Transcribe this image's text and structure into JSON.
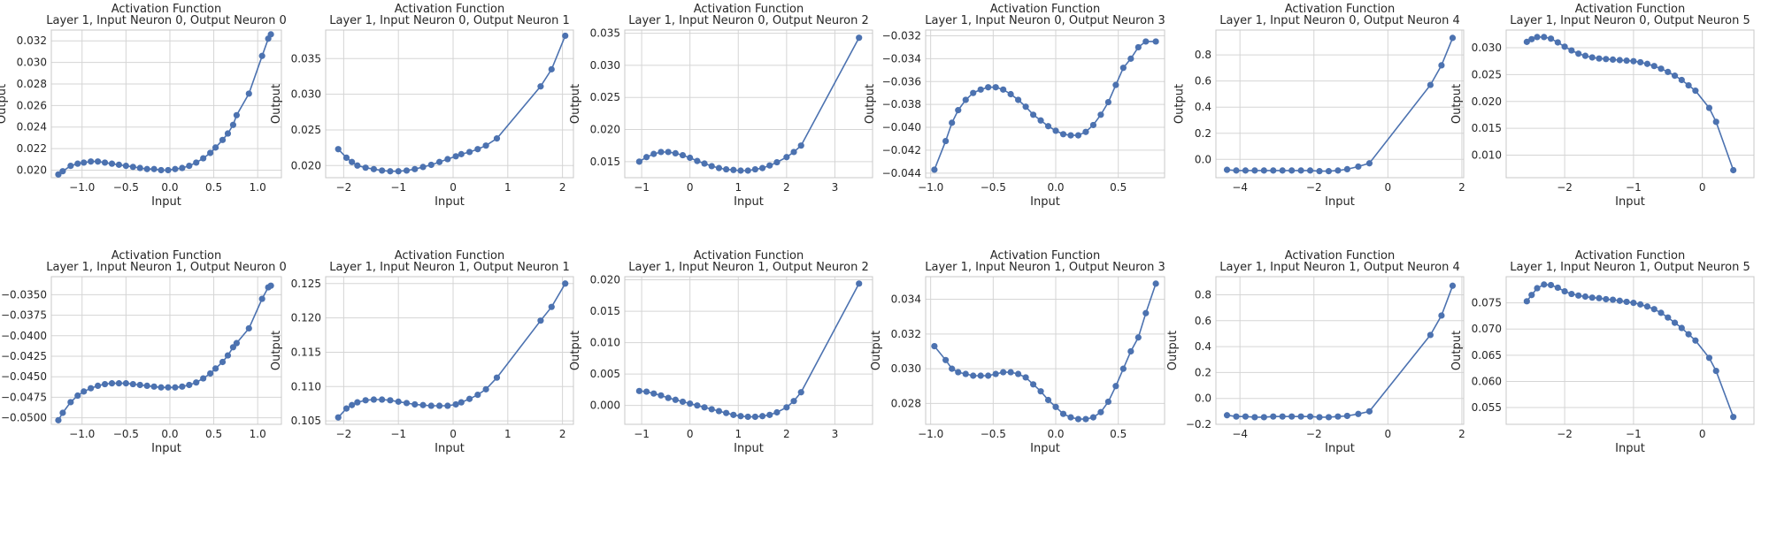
{
  "figure": {
    "rows": 2,
    "cols": 6,
    "style": {
      "line_color": "#4c72b0",
      "marker_color": "#4c72b0",
      "grid_color": "#d5d5d5",
      "background": "#ffffff"
    }
  },
  "chart_data": [
    {
      "type": "line",
      "title": "Activation Function\nLayer 1, Input Neuron 0, Output Neuron 0",
      "xlabel": "Input",
      "ylabel": "Output",
      "grid": true,
      "xlim": [
        -1.35,
        1.27
      ],
      "ylim": [
        0.0193,
        0.033
      ],
      "xticks": [
        -1.0,
        -0.5,
        0.0,
        0.5,
        1.0
      ],
      "xtick_labels": [
        "−1.0",
        "−0.5",
        "0.0",
        "0.5",
        "1.0"
      ],
      "yticks": [
        0.02,
        0.022,
        0.024,
        0.026,
        0.028,
        0.03,
        0.032
      ],
      "ytick_labels": [
        "0.020",
        "0.022",
        "0.024",
        "0.026",
        "0.028",
        "0.030",
        "0.032"
      ],
      "x": [
        -1.27,
        -1.22,
        -1.13,
        -1.05,
        -0.98,
        -0.9,
        -0.82,
        -0.74,
        -0.66,
        -0.58,
        -0.5,
        -0.42,
        -0.34,
        -0.26,
        -0.18,
        -0.1,
        -0.02,
        0.06,
        0.14,
        0.22,
        0.3,
        0.38,
        0.46,
        0.52,
        0.6,
        0.66,
        0.72,
        0.76,
        0.9,
        1.05,
        1.12,
        1.15
      ],
      "y": [
        0.0196,
        0.0199,
        0.0204,
        0.0206,
        0.0207,
        0.0208,
        0.0208,
        0.0207,
        0.0206,
        0.0205,
        0.0204,
        0.0203,
        0.0202,
        0.0201,
        0.0201,
        0.02,
        0.02,
        0.0201,
        0.0202,
        0.0204,
        0.0207,
        0.0211,
        0.0216,
        0.0221,
        0.0228,
        0.0234,
        0.0242,
        0.0251,
        0.0271,
        0.0306,
        0.0322,
        0.0326
      ]
    },
    {
      "type": "line",
      "title": "Activation Function\nLayer 1, Input Neuron 0, Output Neuron 1",
      "xlabel": "Input",
      "ylabel": "Output",
      "grid": true,
      "xlim": [
        -2.33,
        2.2
      ],
      "ylim": [
        0.0183,
        0.039
      ],
      "xticks": [
        -2,
        -1,
        0,
        1,
        2
      ],
      "xtick_labels": [
        "−2",
        "−1",
        "0",
        "1",
        "2"
      ],
      "yticks": [
        0.02,
        0.025,
        0.03,
        0.035
      ],
      "ytick_labels": [
        "0.020",
        "0.025",
        "0.030",
        "0.035"
      ],
      "x": [
        -2.1,
        -1.95,
        -1.85,
        -1.75,
        -1.6,
        -1.45,
        -1.3,
        -1.15,
        -1.0,
        -0.85,
        -0.7,
        -0.55,
        -0.4,
        -0.25,
        -0.1,
        0.05,
        0.15,
        0.3,
        0.45,
        0.6,
        0.8,
        1.6,
        1.8,
        2.05
      ],
      "y": [
        0.0223,
        0.0211,
        0.0205,
        0.02,
        0.0197,
        0.0195,
        0.0193,
        0.0192,
        0.0192,
        0.0193,
        0.0195,
        0.0198,
        0.0201,
        0.0205,
        0.0209,
        0.0213,
        0.0216,
        0.0219,
        0.0223,
        0.0228,
        0.0238,
        0.0311,
        0.0335,
        0.0382
      ]
    },
    {
      "type": "line",
      "title": "Activation Function\nLayer 1, Input Neuron 0, Output Neuron 2",
      "xlabel": "Input",
      "ylabel": "Output",
      "grid": true,
      "xlim": [
        -1.35,
        3.78
      ],
      "ylim": [
        0.0125,
        0.0355
      ],
      "xticks": [
        -1,
        0,
        1,
        2,
        3
      ],
      "xtick_labels": [
        "−1",
        "0",
        "1",
        "2",
        "3"
      ],
      "yticks": [
        0.015,
        0.02,
        0.025,
        0.03,
        0.035
      ],
      "ytick_labels": [
        "0.015",
        "0.020",
        "0.025",
        "0.030",
        "0.035"
      ],
      "x": [
        -1.05,
        -0.9,
        -0.75,
        -0.6,
        -0.45,
        -0.3,
        -0.15,
        0.0,
        0.15,
        0.3,
        0.45,
        0.6,
        0.75,
        0.9,
        1.05,
        1.2,
        1.35,
        1.5,
        1.65,
        1.8,
        2.0,
        2.15,
        2.3,
        3.5
      ],
      "y": [
        0.015,
        0.0157,
        0.0162,
        0.0165,
        0.0165,
        0.0163,
        0.016,
        0.0156,
        0.0151,
        0.0147,
        0.0143,
        0.014,
        0.0138,
        0.0137,
        0.0136,
        0.0136,
        0.0138,
        0.014,
        0.0144,
        0.0149,
        0.0157,
        0.0165,
        0.0175,
        0.0343
      ]
    },
    {
      "type": "line",
      "title": "Activation Function\nLayer 1, Input Neuron 0, Output Neuron 3",
      "xlabel": "Input",
      "ylabel": "Output",
      "grid": true,
      "xlim": [
        -1.04,
        0.87
      ],
      "ylim": [
        -0.0444,
        -0.0315
      ],
      "xticks": [
        -1.0,
        -0.5,
        0.0,
        0.5
      ],
      "xtick_labels": [
        "−1.0",
        "−0.5",
        "0.0",
        "0.5"
      ],
      "yticks": [
        -0.044,
        -0.042,
        -0.04,
        -0.038,
        -0.036,
        -0.034,
        -0.032
      ],
      "ytick_labels": [
        "−0.044",
        "−0.042",
        "−0.040",
        "−0.038",
        "−0.036",
        "−0.034",
        "−0.032"
      ],
      "x": [
        -0.97,
        -0.88,
        -0.83,
        -0.78,
        -0.72,
        -0.66,
        -0.6,
        -0.54,
        -0.48,
        -0.42,
        -0.36,
        -0.3,
        -0.24,
        -0.18,
        -0.12,
        -0.06,
        0.0,
        0.06,
        0.12,
        0.18,
        0.24,
        0.3,
        0.36,
        0.42,
        0.48,
        0.54,
        0.6,
        0.66,
        0.72,
        0.8
      ],
      "y": [
        -0.0437,
        -0.0412,
        -0.0396,
        -0.0385,
        -0.0376,
        -0.037,
        -0.0367,
        -0.0365,
        -0.0365,
        -0.0367,
        -0.0371,
        -0.0376,
        -0.0382,
        -0.0389,
        -0.0394,
        -0.0399,
        -0.0403,
        -0.0406,
        -0.0407,
        -0.0407,
        -0.0404,
        -0.0398,
        -0.0389,
        -0.0378,
        -0.0363,
        -0.0348,
        -0.034,
        -0.033,
        -0.0325,
        -0.0325
      ]
    },
    {
      "type": "line",
      "title": "Activation Function\nLayer 1, Input Neuron 0, Output Neuron 4",
      "xlabel": "Input",
      "ylabel": "Output",
      "grid": true,
      "xlim": [
        -4.65,
        2.05
      ],
      "ylim": [
        -0.14,
        0.99
      ],
      "xticks": [
        -4,
        -2,
        0,
        2
      ],
      "xtick_labels": [
        "−4",
        "−2",
        "0",
        "2"
      ],
      "yticks": [
        0.0,
        0.2,
        0.4,
        0.6,
        0.8
      ],
      "ytick_labels": [
        "0.0",
        "0.2",
        "0.4",
        "0.6",
        "0.8"
      ],
      "x": [
        -4.35,
        -4.1,
        -3.85,
        -3.6,
        -3.35,
        -3.1,
        -2.85,
        -2.6,
        -2.35,
        -2.1,
        -1.85,
        -1.6,
        -1.35,
        -1.1,
        -0.8,
        -0.5,
        1.15,
        1.45,
        1.75
      ],
      "y": [
        -0.08,
        -0.085,
        -0.085,
        -0.085,
        -0.085,
        -0.085,
        -0.085,
        -0.085,
        -0.085,
        -0.085,
        -0.09,
        -0.09,
        -0.085,
        -0.075,
        -0.055,
        -0.03,
        0.57,
        0.72,
        0.93
      ]
    },
    {
      "type": "line",
      "title": "Activation Function\nLayer 1, Input Neuron 0, Output Neuron 5",
      "xlabel": "Input",
      "ylabel": "Output",
      "grid": true,
      "xlim": [
        -2.85,
        0.75
      ],
      "ylim": [
        0.0058,
        0.0333
      ],
      "xticks": [
        -2,
        -1,
        0
      ],
      "xtick_labels": [
        "−2",
        "−1",
        "0"
      ],
      "yticks": [
        0.01,
        0.015,
        0.02,
        0.025,
        0.03
      ],
      "ytick_labels": [
        "0.010",
        "0.015",
        "0.020",
        "0.025",
        "0.030"
      ],
      "x": [
        -2.55,
        -2.48,
        -2.4,
        -2.3,
        -2.2,
        -2.1,
        -2.0,
        -1.9,
        -1.8,
        -1.7,
        -1.6,
        -1.5,
        -1.4,
        -1.3,
        -1.2,
        -1.1,
        -1.0,
        -0.9,
        -0.8,
        -0.7,
        -0.6,
        -0.5,
        -0.4,
        -0.3,
        -0.2,
        -0.1,
        0.1,
        0.2,
        0.45
      ],
      "y": [
        0.0311,
        0.0316,
        0.032,
        0.032,
        0.0317,
        0.031,
        0.0302,
        0.0295,
        0.0289,
        0.0285,
        0.0282,
        0.028,
        0.0279,
        0.0278,
        0.0277,
        0.0276,
        0.0275,
        0.0273,
        0.027,
        0.0266,
        0.0261,
        0.0255,
        0.0248,
        0.024,
        0.023,
        0.022,
        0.0188,
        0.0162,
        0.0072
      ]
    },
    {
      "type": "line",
      "title": "Activation Function\nLayer 1, Input Neuron 1, Output Neuron 0",
      "xlabel": "Input",
      "ylabel": "Output",
      "grid": true,
      "xlim": [
        -1.35,
        1.27
      ],
      "ylim": [
        -0.0508,
        -0.0328
      ],
      "xticks": [
        -1.0,
        -0.5,
        0.0,
        0.5,
        1.0
      ],
      "xtick_labels": [
        "−1.0",
        "−0.5",
        "0.0",
        "0.5",
        "1.0"
      ],
      "yticks": [
        -0.05,
        -0.0475,
        -0.045,
        -0.0425,
        -0.04,
        -0.0375,
        -0.035
      ],
      "ytick_labels": [
        "−0.0500",
        "−0.0475",
        "−0.0450",
        "−0.0425",
        "−0.0400",
        "−0.0375",
        "−0.0350"
      ],
      "x": [
        -1.27,
        -1.22,
        -1.13,
        -1.05,
        -0.98,
        -0.9,
        -0.82,
        -0.74,
        -0.66,
        -0.58,
        -0.5,
        -0.42,
        -0.34,
        -0.26,
        -0.18,
        -0.1,
        -0.02,
        0.06,
        0.14,
        0.22,
        0.3,
        0.38,
        0.46,
        0.52,
        0.6,
        0.66,
        0.72,
        0.76,
        0.9,
        1.05,
        1.12,
        1.15
      ],
      "y": [
        -0.0503,
        -0.0494,
        -0.0481,
        -0.0473,
        -0.0468,
        -0.0464,
        -0.0461,
        -0.0459,
        -0.0458,
        -0.0458,
        -0.0458,
        -0.0459,
        -0.046,
        -0.0461,
        -0.0462,
        -0.0463,
        -0.0463,
        -0.0463,
        -0.0462,
        -0.046,
        -0.0457,
        -0.0452,
        -0.0446,
        -0.044,
        -0.0432,
        -0.0424,
        -0.0414,
        -0.0409,
        -0.0391,
        -0.0355,
        -0.0341,
        -0.0339
      ]
    },
    {
      "type": "line",
      "title": "Activation Function\nLayer 1, Input Neuron 1, Output Neuron 1",
      "xlabel": "Input",
      "ylabel": "Output",
      "grid": true,
      "xlim": [
        -2.33,
        2.2
      ],
      "ylim": [
        0.1045,
        0.126
      ],
      "xticks": [
        -2,
        -1,
        0,
        1,
        2
      ],
      "xtick_labels": [
        "−2",
        "−1",
        "0",
        "1",
        "2"
      ],
      "yticks": [
        0.105,
        0.11,
        0.115,
        0.12,
        0.125
      ],
      "ytick_labels": [
        "0.105",
        "0.110",
        "0.115",
        "0.120",
        "0.125"
      ],
      "x": [
        -2.1,
        -1.95,
        -1.85,
        -1.75,
        -1.6,
        -1.45,
        -1.3,
        -1.15,
        -1.0,
        -0.85,
        -0.7,
        -0.55,
        -0.4,
        -0.25,
        -0.1,
        0.05,
        0.15,
        0.3,
        0.45,
        0.6,
        0.8,
        1.6,
        1.8,
        2.05
      ],
      "y": [
        0.1055,
        0.1068,
        0.1073,
        0.1077,
        0.108,
        0.1081,
        0.1081,
        0.108,
        0.1078,
        0.1076,
        0.1074,
        0.1073,
        0.1072,
        0.1072,
        0.1072,
        0.1074,
        0.1077,
        0.1082,
        0.1088,
        0.1096,
        0.1113,
        0.1196,
        0.1216,
        0.125
      ]
    },
    {
      "type": "line",
      "title": "Activation Function\nLayer 1, Input Neuron 1, Output Neuron 2",
      "xlabel": "Input",
      "ylabel": "Output",
      "grid": true,
      "xlim": [
        -1.35,
        3.78
      ],
      "ylim": [
        -0.003,
        0.0205
      ],
      "xticks": [
        -1,
        0,
        1,
        2,
        3
      ],
      "xtick_labels": [
        "−1",
        "0",
        "1",
        "2",
        "3"
      ],
      "yticks": [
        0.0,
        0.005,
        0.01,
        0.015,
        0.02
      ],
      "ytick_labels": [
        "0.000",
        "0.005",
        "0.010",
        "0.015",
        "0.020"
      ],
      "x": [
        -1.05,
        -0.9,
        -0.75,
        -0.6,
        -0.45,
        -0.3,
        -0.15,
        0.0,
        0.15,
        0.3,
        0.45,
        0.6,
        0.75,
        0.9,
        1.05,
        1.2,
        1.35,
        1.5,
        1.65,
        1.8,
        2.0,
        2.15,
        2.3,
        3.5
      ],
      "y": [
        0.0023,
        0.0022,
        0.0019,
        0.0016,
        0.0012,
        0.0009,
        0.0006,
        0.0003,
        0.0,
        -0.0003,
        -0.0006,
        -0.0009,
        -0.0012,
        -0.0015,
        -0.0017,
        -0.0018,
        -0.0018,
        -0.0017,
        -0.0015,
        -0.0011,
        -0.0003,
        0.0007,
        0.0021,
        0.0194
      ]
    },
    {
      "type": "line",
      "title": "Activation Function\nLayer 1, Input Neuron 1, Output Neuron 3",
      "xlabel": "Input",
      "ylabel": "Output",
      "grid": true,
      "xlim": [
        -1.04,
        0.87
      ],
      "ylim": [
        0.0268,
        0.0353
      ],
      "xticks": [
        -1.0,
        -0.5,
        0.0,
        0.5
      ],
      "xtick_labels": [
        "−1.0",
        "−0.5",
        "0.0",
        "0.5"
      ],
      "yticks": [
        0.028,
        0.03,
        0.032,
        0.034
      ],
      "ytick_labels": [
        "0.028",
        "0.030",
        "0.032",
        "0.034"
      ],
      "x": [
        -0.97,
        -0.88,
        -0.83,
        -0.78,
        -0.72,
        -0.66,
        -0.6,
        -0.54,
        -0.48,
        -0.42,
        -0.36,
        -0.3,
        -0.24,
        -0.18,
        -0.12,
        -0.06,
        0.0,
        0.06,
        0.12,
        0.18,
        0.24,
        0.3,
        0.36,
        0.42,
        0.48,
        0.54,
        0.6,
        0.66,
        0.72,
        0.8
      ],
      "y": [
        0.0313,
        0.0305,
        0.03,
        0.0298,
        0.0297,
        0.0296,
        0.0296,
        0.0296,
        0.0297,
        0.0298,
        0.0298,
        0.0297,
        0.0295,
        0.0291,
        0.0287,
        0.0282,
        0.0278,
        0.0274,
        0.0272,
        0.0271,
        0.0271,
        0.0272,
        0.0275,
        0.0281,
        0.029,
        0.03,
        0.031,
        0.0318,
        0.0332,
        0.0349
      ]
    },
    {
      "type": "line",
      "title": "Activation Function\nLayer 1, Input Neuron 1, Output Neuron 4",
      "xlabel": "Input",
      "ylabel": "Output",
      "grid": true,
      "xlim": [
        -4.65,
        2.05
      ],
      "ylim": [
        -0.2,
        0.94
      ],
      "xticks": [
        -4,
        -2,
        0,
        2
      ],
      "xtick_labels": [
        "−4",
        "−2",
        "0",
        "2"
      ],
      "yticks": [
        -0.2,
        0.0,
        0.2,
        0.4,
        0.6,
        0.8
      ],
      "ytick_labels": [
        "−0.2",
        "0.0",
        "0.2",
        "0.4",
        "0.6",
        "0.8"
      ],
      "x": [
        -4.35,
        -4.1,
        -3.85,
        -3.6,
        -3.35,
        -3.1,
        -2.85,
        -2.6,
        -2.35,
        -2.1,
        -1.85,
        -1.6,
        -1.35,
        -1.1,
        -0.8,
        -0.5,
        1.15,
        1.45,
        1.75
      ],
      "y": [
        -0.13,
        -0.14,
        -0.14,
        -0.145,
        -0.145,
        -0.14,
        -0.14,
        -0.14,
        -0.14,
        -0.14,
        -0.145,
        -0.145,
        -0.14,
        -0.135,
        -0.12,
        -0.1,
        0.49,
        0.64,
        0.87
      ]
    },
    {
      "type": "line",
      "title": "Activation Function\nLayer 1, Input Neuron 1, Output Neuron 5",
      "xlabel": "Input",
      "ylabel": "Output",
      "grid": true,
      "xlim": [
        -2.85,
        0.75
      ],
      "ylim": [
        0.0518,
        0.08
      ],
      "xticks": [
        -2,
        -1,
        0
      ],
      "xtick_labels": [
        "−2",
        "−1",
        "0"
      ],
      "yticks": [
        0.055,
        0.06,
        0.065,
        0.07,
        0.075
      ],
      "ytick_labels": [
        "0.055",
        "0.060",
        "0.065",
        "0.070",
        "0.075"
      ],
      "x": [
        -2.55,
        -2.48,
        -2.4,
        -2.3,
        -2.2,
        -2.1,
        -2.0,
        -1.9,
        -1.8,
        -1.7,
        -1.6,
        -1.5,
        -1.4,
        -1.3,
        -1.2,
        -1.1,
        -1.0,
        -0.9,
        -0.8,
        -0.7,
        -0.6,
        -0.5,
        -0.4,
        -0.3,
        -0.2,
        -0.1,
        0.1,
        0.2,
        0.45
      ],
      "y": [
        0.0753,
        0.0765,
        0.0778,
        0.0785,
        0.0784,
        0.0779,
        0.0772,
        0.0767,
        0.0764,
        0.0762,
        0.076,
        0.0759,
        0.0757,
        0.0756,
        0.0754,
        0.0752,
        0.075,
        0.0747,
        0.0743,
        0.0738,
        0.0731,
        0.0722,
        0.0712,
        0.0702,
        0.069,
        0.0678,
        0.0645,
        0.062,
        0.0532
      ]
    }
  ]
}
